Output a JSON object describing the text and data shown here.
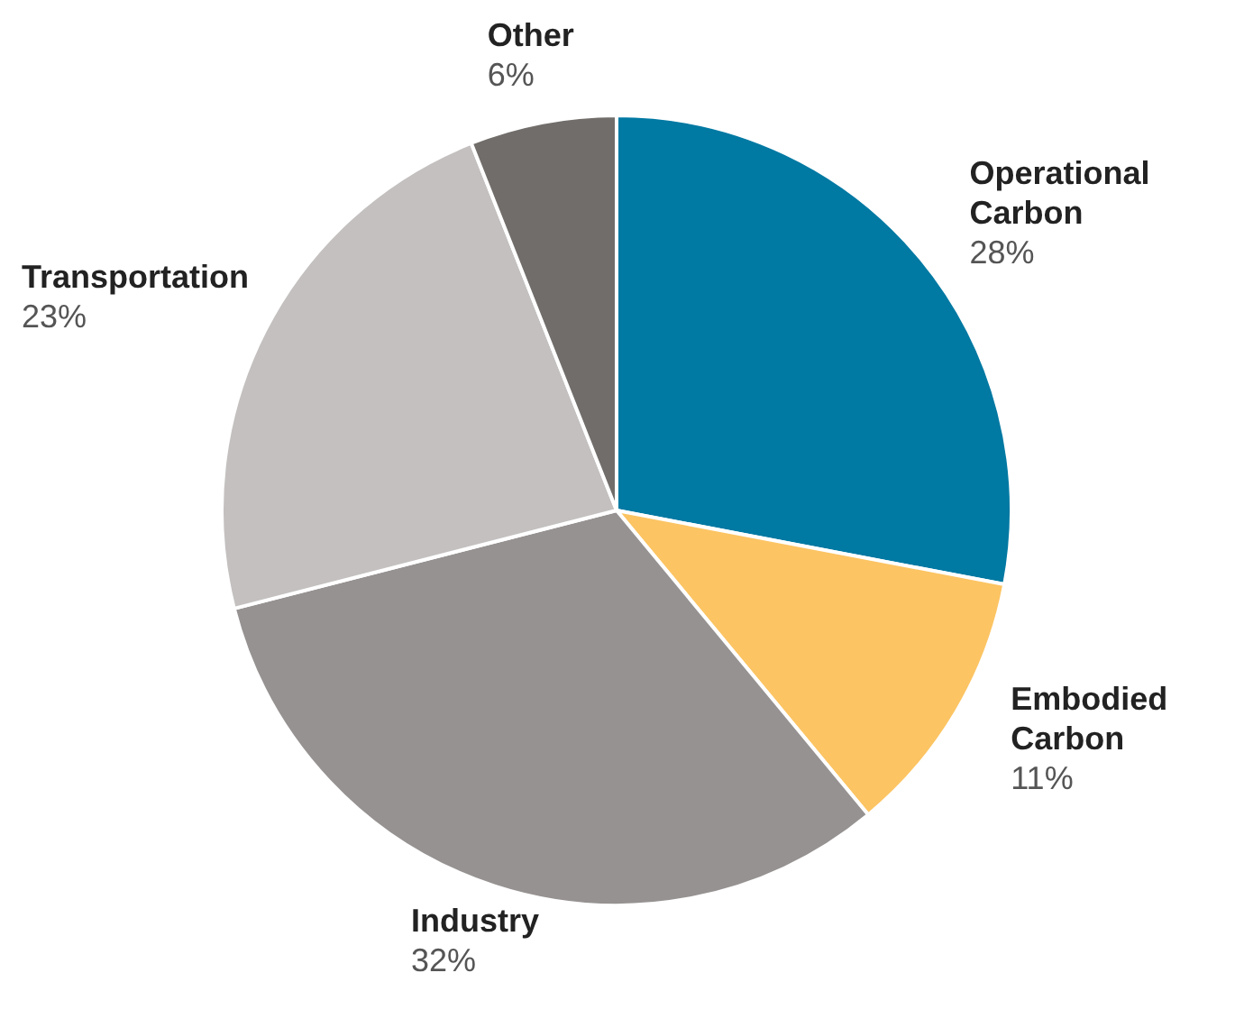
{
  "chart_data": {
    "type": "pie",
    "categories": [
      "Operational Carbon",
      "Embodied Carbon",
      "Industry",
      "Transportation",
      "Other"
    ],
    "values": [
      28,
      11,
      32,
      23,
      6
    ],
    "value_labels": [
      "28%",
      "11%",
      "32%",
      "23%",
      "6%"
    ],
    "colors": [
      "#0079a3",
      "#fcc463",
      "#969291",
      "#c3c0bf",
      "#716d6a"
    ]
  }
}
